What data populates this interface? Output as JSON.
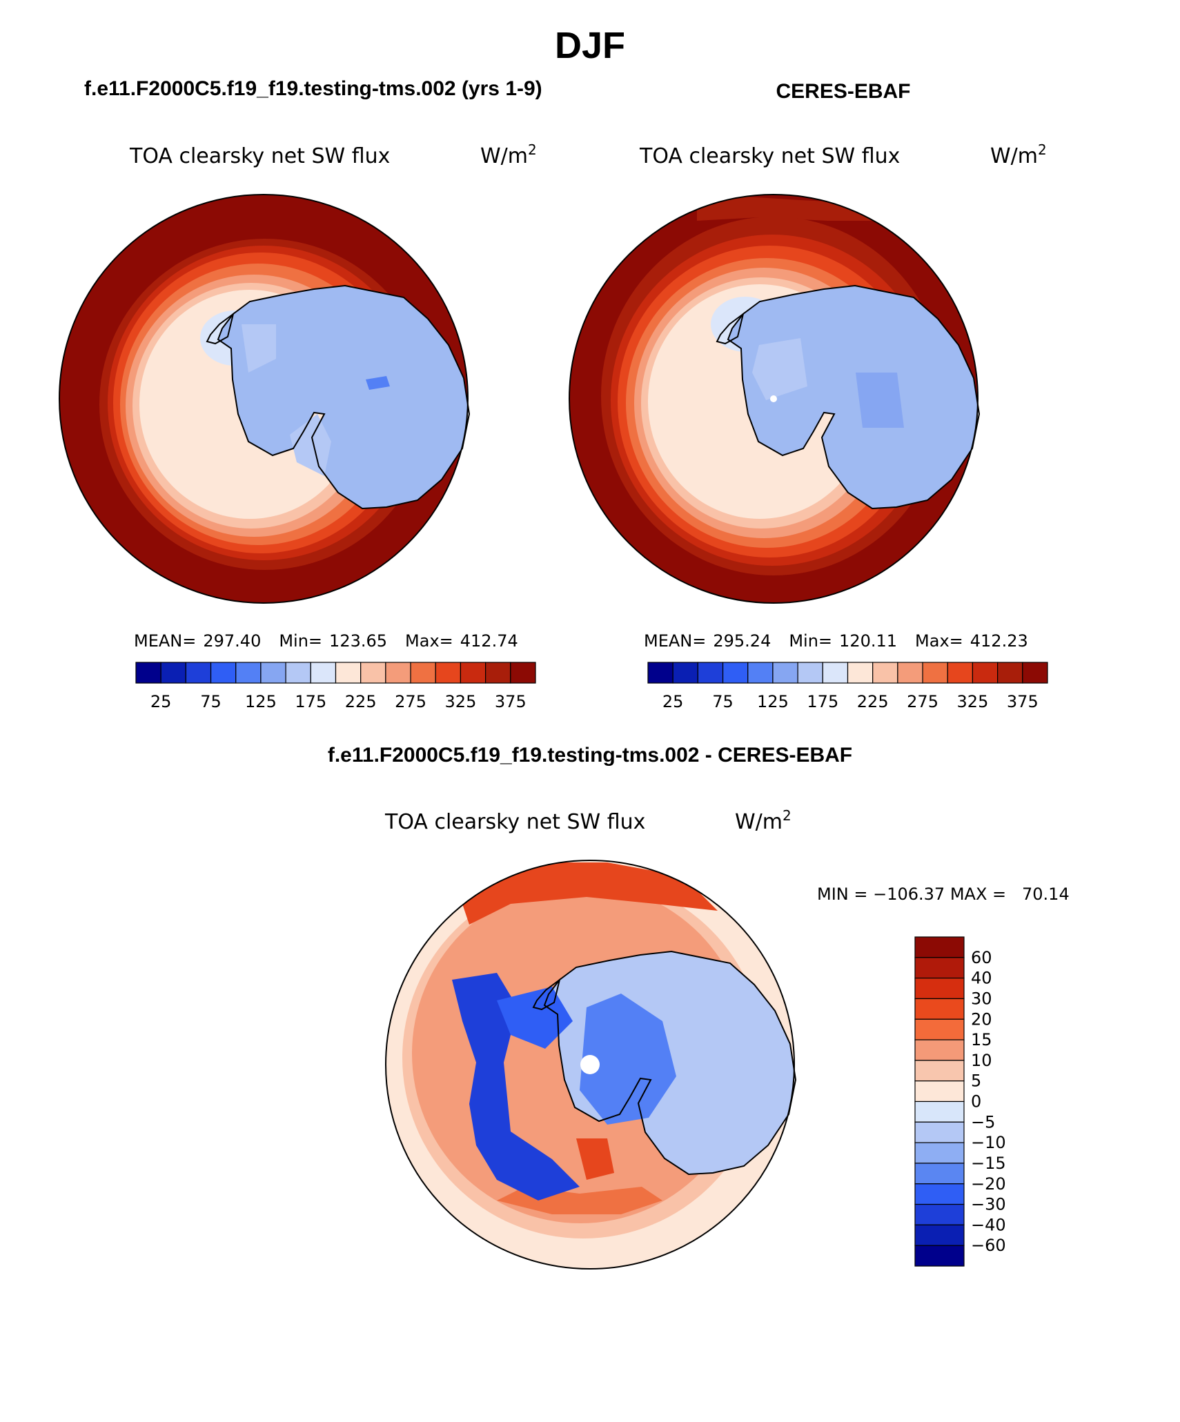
{
  "figure": {
    "season": "DJF",
    "left_title": "f.e11.F2000C5.f19_f19.testing-tms.002 (yrs 1-9)",
    "right_title": "CERES-EBAF",
    "diff_title": "f.e11.F2000C5.f19_f19.testing-tms.002 - CERES-EBAF"
  },
  "panels": {
    "model": {
      "variable": "TOA clearsky net SW flux",
      "units": "W/m",
      "units_exp": "2",
      "stats": {
        "mean_label": "MEAN=",
        "mean": "297.40",
        "min_label": "Min=",
        "min": "123.65",
        "max_label": "Max=",
        "max": "412.74"
      }
    },
    "obs": {
      "variable": "TOA clearsky net SW flux",
      "units": "W/m",
      "units_exp": "2",
      "stats": {
        "mean_label": "MEAN=",
        "mean": "295.24",
        "min_label": "Min=",
        "min": "120.11",
        "max_label": "Max=",
        "max": "412.23"
      }
    },
    "diff": {
      "variable": "TOA clearsky net SW flux",
      "units": "W/m",
      "units_exp": "2",
      "minmax": "MIN = −106.37 MAX =   70.14"
    }
  },
  "colorbars": {
    "main": {
      "colors": [
        "#00008c",
        "#0a1fb3",
        "#1e3fd9",
        "#2f5ef5",
        "#5380f5",
        "#86a6f2",
        "#b4c8f5",
        "#dbe6fa",
        "#fde7d8",
        "#f9c2a8",
        "#f49c7a",
        "#ef7142",
        "#e6461d",
        "#c92a0f",
        "#a81e0a",
        "#8c0a04"
      ],
      "ticks": [
        "25",
        "75",
        "125",
        "175",
        "225",
        "275",
        "325",
        "375"
      ]
    },
    "diff": {
      "colors": [
        "#8c0a04",
        "#b01a0a",
        "#d62e0f",
        "#ea4a1d",
        "#f36b3a",
        "#f49a78",
        "#f8c6ae",
        "#fde7d8",
        "#d8e6fa",
        "#b4c8f5",
        "#8eaef3",
        "#5a86f2",
        "#2f5ef5",
        "#1e3fd9",
        "#0a1fb3",
        "#00008c"
      ],
      "ticks": [
        "60",
        "40",
        "30",
        "20",
        "15",
        "10",
        "5",
        "0",
        "−5",
        "−10",
        "−15",
        "−20",
        "−30",
        "−40",
        "−60"
      ]
    }
  },
  "map_palette": {
    "abs_ocean": "#8c0a04",
    "abs_ring": [
      "#a81e0a",
      "#c92a0f",
      "#e6461d",
      "#ef7142",
      "#f49c7a",
      "#f9c2a8",
      "#fde7d8"
    ],
    "ice": "#9fbaf2",
    "ice_dark": "#86a6f2",
    "ice_light": "#b4c8f5",
    "diff_bg": "#fde7d8",
    "diff_ring": [
      "#f9c2a8",
      "#f49c7a",
      "#ef7142",
      "#e6461d"
    ],
    "diff_blue": [
      "#dbe6fa",
      "#b4c8f5",
      "#86a6f2",
      "#5380f5",
      "#2f5ef5",
      "#1e3fd9",
      "#0a1fb3"
    ]
  }
}
